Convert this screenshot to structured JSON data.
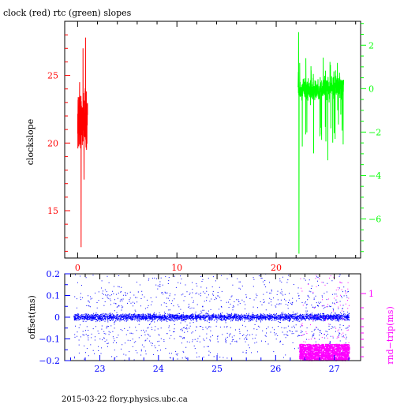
{
  "footer_text": "2015-03-22 flory.physics.ubc.ca",
  "colors": {
    "clock": "#ff0000",
    "rtc": "#00ff00",
    "offset": "#0000ff",
    "roundtrip": "#ff00ff",
    "frame": "#000000"
  },
  "chart_data": [
    {
      "type": "line",
      "title": "clock (red) rtc (green) slopes",
      "ylabel": "clockslope",
      "y2label": "",
      "xlim": [
        -1.3,
        28.5
      ],
      "ylim": [
        11.5,
        29.0
      ],
      "y2lim": [
        -7.8,
        3.1
      ],
      "x_ticks": [
        "0",
        "10",
        "20"
      ],
      "x_tick_values": [
        0,
        10,
        20
      ],
      "y_ticks": [
        "15",
        "20",
        "25"
      ],
      "y_tick_values": [
        15,
        20,
        25
      ],
      "y2_ticks": [
        "2",
        "0",
        "−2",
        "−4",
        "−6"
      ],
      "y2_tick_values": [
        2,
        0,
        -2,
        -4,
        -6
      ],
      "grid": false,
      "series": [
        {
          "name": "clock",
          "axis": "left",
          "x_range": [
            0.0,
            1.0
          ],
          "y_min": 12.3,
          "y_max": 27.8,
          "y_typical": [
            19.5,
            24.0
          ],
          "spikes": [
            [
              0.2,
              24.5
            ],
            [
              0.35,
              12.3
            ],
            [
              0.55,
              27.0
            ],
            [
              0.65,
              17.3
            ],
            [
              0.8,
              27.8
            ],
            [
              0.9,
              19.5
            ]
          ]
        },
        {
          "name": "rtc",
          "axis": "right",
          "x_range": [
            22.2,
            26.8
          ],
          "y_min": -7.6,
          "y_max": 2.6,
          "y_typical": [
            -1.5,
            1.0
          ],
          "spikes": [
            [
              22.25,
              2.6
            ],
            [
              22.3,
              -7.6
            ],
            [
              23.0,
              0.2
            ],
            [
              24.5,
              -1.8
            ],
            [
              25.2,
              -3.3
            ],
            [
              26.2,
              -1.0
            ]
          ]
        }
      ]
    },
    {
      "type": "scatter",
      "title": "",
      "ylabel": "offset(ms)",
      "y2label": "rnd−trip(ms)",
      "xlim": [
        22.4,
        27.45
      ],
      "ylim": [
        -0.2,
        0.2
      ],
      "x_ticks": [
        "23",
        "24",
        "25",
        "26",
        "27"
      ],
      "x_tick_values": [
        23,
        24,
        25,
        26,
        27
      ],
      "y_ticks": [
        "0.2",
        "0.1",
        "0",
        "−0.1",
        "−0.2"
      ],
      "y_tick_values": [
        0.2,
        0.1,
        0,
        -0.1,
        -0.2
      ],
      "y2_ticks": [
        "1"
      ],
      "grid": false,
      "series": [
        {
          "name": "offset",
          "axis": "left",
          "x_range": [
            22.55,
            27.25
          ],
          "y_band": [
            -0.03,
            0.03
          ],
          "y_outliers": [
            -0.2,
            0.2
          ]
        },
        {
          "name": "round-trip",
          "axis": "right",
          "x_range": [
            26.4,
            27.25
          ],
          "y_band": [
            -0.2,
            -0.125
          ]
        }
      ]
    }
  ]
}
